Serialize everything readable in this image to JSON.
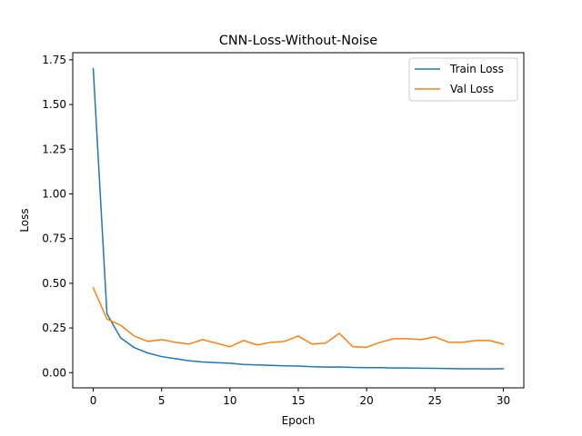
{
  "chart_data": {
    "type": "line",
    "title": "CNN-Loss-Without-Noise",
    "xlabel": "Epoch",
    "ylabel": "Loss",
    "xlim": [
      -1.5,
      31.5
    ],
    "ylim": [
      -0.085,
      1.79
    ],
    "xticks": [
      0,
      5,
      10,
      15,
      20,
      25,
      30
    ],
    "xtick_labels": [
      "0",
      "5",
      "10",
      "15",
      "20",
      "25",
      "30"
    ],
    "yticks": [
      0.0,
      0.25,
      0.5,
      0.75,
      1.0,
      1.25,
      1.5,
      1.75
    ],
    "ytick_labels": [
      "0.00",
      "0.25",
      "0.50",
      "0.75",
      "1.00",
      "1.25",
      "1.50",
      "1.75"
    ],
    "grid": false,
    "legend_position": "top-right",
    "x": [
      0,
      1,
      2,
      3,
      4,
      5,
      6,
      7,
      8,
      9,
      10,
      11,
      12,
      13,
      14,
      15,
      16,
      17,
      18,
      19,
      20,
      21,
      22,
      23,
      24,
      25,
      26,
      27,
      28,
      29,
      30
    ],
    "series": [
      {
        "name": "Train Loss",
        "color": "#1f77b4",
        "values": [
          1.7,
          0.33,
          0.195,
          0.14,
          0.11,
          0.09,
          0.078,
          0.067,
          0.06,
          0.056,
          0.053,
          0.046,
          0.043,
          0.041,
          0.038,
          0.037,
          0.033,
          0.031,
          0.032,
          0.029,
          0.028,
          0.028,
          0.026,
          0.026,
          0.025,
          0.024,
          0.023,
          0.022,
          0.022,
          0.021,
          0.022
        ]
      },
      {
        "name": "Val Loss",
        "color": "#ff7f0e",
        "values": [
          0.475,
          0.3,
          0.265,
          0.205,
          0.175,
          0.185,
          0.17,
          0.16,
          0.185,
          0.165,
          0.145,
          0.18,
          0.155,
          0.17,
          0.175,
          0.205,
          0.16,
          0.165,
          0.22,
          0.145,
          0.142,
          0.17,
          0.19,
          0.19,
          0.185,
          0.2,
          0.17,
          0.17,
          0.18,
          0.18,
          0.16
        ]
      }
    ]
  }
}
